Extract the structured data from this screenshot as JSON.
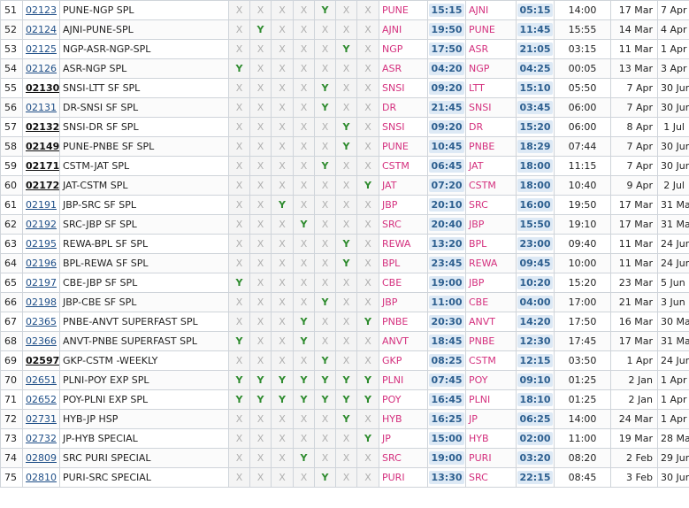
{
  "rows": [
    {
      "no": "51",
      "train": "02123",
      "name": "PUNE-NGP SPL",
      "days": [
        "X",
        "X",
        "X",
        "X",
        "Y",
        "X",
        "X"
      ],
      "from": "PUNE",
      "dep": "15:15",
      "to": "AJNI",
      "arr": "05:15",
      "dur": "14:00",
      "start": "17 Mar",
      "end": "7 Apr"
    },
    {
      "no": "52",
      "train": "02124",
      "name": "AJNI-PUNE-SPL",
      "days": [
        "X",
        "Y",
        "X",
        "X",
        "X",
        "X",
        "X"
      ],
      "from": "AJNI",
      "dep": "19:50",
      "to": "PUNE",
      "arr": "11:45",
      "dur": "15:55",
      "start": "14 Mar",
      "end": "4 Apr"
    },
    {
      "no": "53",
      "train": "02125",
      "name": "NGP-ASR-NGP-SPL",
      "days": [
        "X",
        "X",
        "X",
        "X",
        "X",
        "Y",
        "X"
      ],
      "from": "NGP",
      "dep": "17:50",
      "to": "ASR",
      "arr": "21:05",
      "dur": "03:15",
      "start": "11 Mar",
      "end": "1 Apr"
    },
    {
      "no": "54",
      "train": "02126",
      "name": "ASR-NGP SPL",
      "days": [
        "Y",
        "X",
        "X",
        "X",
        "X",
        "X",
        "X"
      ],
      "from": "ASR",
      "dep": "04:20",
      "to": "NGP",
      "arr": "04:25",
      "dur": "00:05",
      "start": "13 Mar",
      "end": "3 Apr"
    },
    {
      "no": "55",
      "train": "02130",
      "bold": true,
      "name": "SNSI-LTT SF SPL",
      "days": [
        "X",
        "X",
        "X",
        "X",
        "Y",
        "X",
        "X"
      ],
      "from": "SNSI",
      "dep": "09:20",
      "to": "LTT",
      "arr": "15:10",
      "dur": "05:50",
      "start": "7 Apr",
      "end": "30 Jun"
    },
    {
      "no": "56",
      "train": "02131",
      "name": "DR-SNSI SF SPL",
      "days": [
        "X",
        "X",
        "X",
        "X",
        "Y",
        "X",
        "X"
      ],
      "from": "DR",
      "dep": "21:45",
      "to": "SNSI",
      "arr": "03:45",
      "dur": "06:00",
      "start": "7 Apr",
      "end": "30 Jun"
    },
    {
      "no": "57",
      "train": "02132",
      "bold": true,
      "name": "SNSI-DR SF SPL",
      "days": [
        "X",
        "X",
        "X",
        "X",
        "X",
        "Y",
        "X"
      ],
      "from": "SNSI",
      "dep": "09:20",
      "to": "DR",
      "arr": "15:20",
      "dur": "06:00",
      "start": "8 Apr",
      "end": "1 Jul"
    },
    {
      "no": "58",
      "train": "02149",
      "bold": true,
      "name": "PUNE-PNBE SF SPL",
      "days": [
        "X",
        "X",
        "X",
        "X",
        "X",
        "Y",
        "X"
      ],
      "from": "PUNE",
      "dep": "10:45",
      "to": "PNBE",
      "arr": "18:29",
      "dur": "07:44",
      "start": "7 Apr",
      "end": "30 Jun"
    },
    {
      "no": "59",
      "train": "02171",
      "bold": true,
      "name": "CSTM-JAT SPL",
      "days": [
        "X",
        "X",
        "X",
        "X",
        "Y",
        "X",
        "X"
      ],
      "from": "CSTM",
      "dep": "06:45",
      "to": "JAT",
      "arr": "18:00",
      "dur": "11:15",
      "start": "7 Apr",
      "end": "30 Jun"
    },
    {
      "no": "60",
      "train": "02172",
      "bold": true,
      "name": "JAT-CSTM SPL",
      "days": [
        "X",
        "X",
        "X",
        "X",
        "X",
        "X",
        "Y"
      ],
      "from": "JAT",
      "dep": "07:20",
      "to": "CSTM",
      "arr": "18:00",
      "dur": "10:40",
      "start": "9 Apr",
      "end": "2 Jul"
    },
    {
      "no": "61",
      "train": "02191",
      "name": "JBP-SRC SF SPL",
      "days": [
        "X",
        "X",
        "Y",
        "X",
        "X",
        "X",
        "X"
      ],
      "from": "JBP",
      "dep": "20:10",
      "to": "SRC",
      "arr": "16:00",
      "dur": "19:50",
      "start": "17 Mar",
      "end": "31 May"
    },
    {
      "no": "62",
      "train": "02192",
      "name": "SRC-JBP SF SPL",
      "days": [
        "X",
        "X",
        "X",
        "Y",
        "X",
        "X",
        "X"
      ],
      "from": "SRC",
      "dep": "20:40",
      "to": "JBP",
      "arr": "15:50",
      "dur": "19:10",
      "start": "17 Mar",
      "end": "31 May"
    },
    {
      "no": "63",
      "train": "02195",
      "name": "REWA-BPL SF SPL",
      "days": [
        "X",
        "X",
        "X",
        "X",
        "X",
        "Y",
        "X"
      ],
      "from": "REWA",
      "dep": "13:20",
      "to": "BPL",
      "arr": "23:00",
      "dur": "09:40",
      "start": "11 Mar",
      "end": "24 Jun"
    },
    {
      "no": "64",
      "train": "02196",
      "name": "BPL-REWA SF SPL",
      "days": [
        "X",
        "X",
        "X",
        "X",
        "X",
        "Y",
        "X"
      ],
      "from": "BPL",
      "dep": "23:45",
      "to": "REWA",
      "arr": "09:45",
      "dur": "10:00",
      "start": "11 Mar",
      "end": "24 Jun"
    },
    {
      "no": "65",
      "train": "02197",
      "name": "CBE-JBP SF SPL",
      "days": [
        "Y",
        "X",
        "X",
        "X",
        "X",
        "X",
        "X"
      ],
      "from": "CBE",
      "dep": "19:00",
      "to": "JBP",
      "arr": "10:20",
      "dur": "15:20",
      "start": "23 Mar",
      "end": "5 Jun"
    },
    {
      "no": "66",
      "train": "02198",
      "name": "JBP-CBE SF SPL",
      "days": [
        "X",
        "X",
        "X",
        "X",
        "Y",
        "X",
        "X"
      ],
      "from": "JBP",
      "dep": "11:00",
      "to": "CBE",
      "arr": "04:00",
      "dur": "17:00",
      "start": "21 Mar",
      "end": "3 Jun"
    },
    {
      "no": "67",
      "train": "02365",
      "name": "PNBE-ANVT SUPERFAST SPL",
      "days": [
        "X",
        "X",
        "X",
        "Y",
        "X",
        "X",
        "Y"
      ],
      "from": "PNBE",
      "dep": "20:30",
      "to": "ANVT",
      "arr": "14:20",
      "dur": "17:50",
      "start": "16 Mar",
      "end": "30 Mar"
    },
    {
      "no": "68",
      "train": "02366",
      "name": "ANVT-PNBE SUPERFAST SPL",
      "days": [
        "Y",
        "X",
        "X",
        "Y",
        "X",
        "X",
        "X"
      ],
      "from": "ANVT",
      "dep": "18:45",
      "to": "PNBE",
      "arr": "12:30",
      "dur": "17:45",
      "start": "17 Mar",
      "end": "31 Mar"
    },
    {
      "no": "69",
      "train": "02597",
      "bold": true,
      "name": "GKP-CSTM -WEEKLY",
      "days": [
        "X",
        "X",
        "X",
        "X",
        "Y",
        "X",
        "X"
      ],
      "from": "GKP",
      "dep": "08:25",
      "to": "CSTM",
      "arr": "12:15",
      "dur": "03:50",
      "start": "1 Apr",
      "end": "24 Jun"
    },
    {
      "no": "70",
      "train": "02651",
      "name": "PLNI-POY EXP SPL",
      "days": [
        "Y",
        "Y",
        "Y",
        "Y",
        "Y",
        "Y",
        "Y"
      ],
      "from": "PLNI",
      "dep": "07:45",
      "to": "POY",
      "arr": "09:10",
      "dur": "01:25",
      "start": "2 Jan",
      "end": "1 Apr"
    },
    {
      "no": "71",
      "train": "02652",
      "name": "POY-PLNI EXP SPL",
      "days": [
        "Y",
        "Y",
        "Y",
        "Y",
        "Y",
        "Y",
        "Y"
      ],
      "from": "POY",
      "dep": "16:45",
      "to": "PLNI",
      "arr": "18:10",
      "dur": "01:25",
      "start": "2 Jan",
      "end": "1 Apr"
    },
    {
      "no": "72",
      "train": "02731",
      "name": "HYB-JP HSP",
      "days": [
        "X",
        "X",
        "X",
        "X",
        "X",
        "Y",
        "X"
      ],
      "from": "HYB",
      "dep": "16:25",
      "to": "JP",
      "arr": "06:25",
      "dur": "14:00",
      "start": "24 Mar",
      "end": "1 Apr"
    },
    {
      "no": "73",
      "train": "02732",
      "name": "JP-HYB SPECIAL",
      "days": [
        "X",
        "X",
        "X",
        "X",
        "X",
        "X",
        "Y"
      ],
      "from": "JP",
      "dep": "15:00",
      "to": "HYB",
      "arr": "02:00",
      "dur": "11:00",
      "start": "19 Mar",
      "end": "28 May"
    },
    {
      "no": "74",
      "train": "02809",
      "name": "SRC PURI SPECIAL",
      "days": [
        "X",
        "X",
        "X",
        "Y",
        "X",
        "X",
        "X"
      ],
      "from": "SRC",
      "dep": "19:00",
      "to": "PURI",
      "arr": "03:20",
      "dur": "08:20",
      "start": "2 Feb",
      "end": "29 Jun"
    },
    {
      "no": "75",
      "train": "02810",
      "name": "PURI-SRC SPECIAL",
      "days": [
        "X",
        "X",
        "X",
        "X",
        "Y",
        "X",
        "X"
      ],
      "from": "PURI",
      "dep": "13:30",
      "to": "SRC",
      "arr": "22:15",
      "dur": "08:45",
      "start": "3 Feb",
      "end": "30 Jun"
    }
  ]
}
